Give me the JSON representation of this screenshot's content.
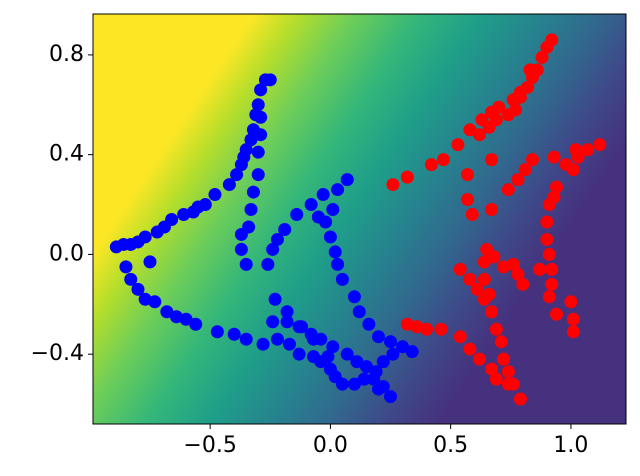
{
  "chart_data": {
    "type": "scatter",
    "xlim": [
      -0.987,
      1.229
    ],
    "ylim": [
      -0.68,
      0.964
    ],
    "xticks": [
      {
        "value": -0.5,
        "label": "−0.5"
      },
      {
        "value": 0,
        "label": "0.0"
      },
      0.5,
      {
        "value": 1,
        "label": "1.0"
      }
    ],
    "yticks": [
      {
        "value": -0.4,
        "label": "−0.4"
      },
      {
        "value": 0,
        "label": "0.0"
      },
      0.4,
      0.8
    ],
    "series": [
      {
        "color": "#0000ff",
        "x": [
          -0.89,
          -0.86,
          -0.83,
          -0.8,
          -0.77,
          -0.72,
          -0.69,
          -0.66,
          -0.61,
          -0.57,
          -0.55,
          -0.52,
          -0.48,
          -0.42,
          -0.39,
          -0.37,
          -0.36,
          -0.35,
          -0.33,
          -0.32,
          -0.31,
          -0.3,
          -0.29,
          -0.27,
          -0.25,
          -0.29,
          -0.29,
          -0.3,
          -0.3,
          -0.32,
          -0.33,
          -0.34,
          -0.37,
          -0.37,
          -0.35,
          -0.26,
          -0.24,
          -0.22,
          -0.19,
          -0.14,
          -0.08,
          -0.03,
          0.03,
          0.07,
          0.01,
          -0.02,
          0.0,
          0.02,
          0.03,
          0.05,
          0.1,
          0.12,
          0.16,
          0.2,
          0.25,
          0.3,
          0.34,
          0.26,
          0.22,
          0.19,
          0.14,
          0.1,
          0.05,
          0.02,
          0.0,
          -0.04,
          -0.07,
          -0.13,
          -0.17,
          -0.22,
          -0.24,
          -0.18,
          -0.13,
          -0.08,
          -0.04,
          0.01,
          0.07,
          0.11,
          0.15,
          0.18,
          0.22,
          0.25,
          0.2,
          -0.01,
          -0.07,
          -0.12,
          -0.18,
          -0.23,
          -0.28,
          -0.35,
          -0.4,
          -0.47,
          -0.56,
          -0.6,
          -0.64,
          -0.68,
          -0.73,
          -0.77,
          -0.8,
          -0.83,
          -0.85,
          -0.75,
          -0.05
        ],
        "values": [
          0.03,
          0.04,
          0.04,
          0.05,
          0.07,
          0.09,
          0.11,
          0.14,
          0.16,
          0.17,
          0.19,
          0.2,
          0.24,
          0.28,
          0.32,
          0.36,
          0.39,
          0.42,
          0.46,
          0.5,
          0.56,
          0.6,
          0.66,
          0.7,
          0.7,
          0.55,
          0.48,
          0.41,
          0.32,
          0.25,
          0.18,
          0.11,
          0.08,
          0.02,
          -0.04,
          -0.04,
          0.02,
          0.06,
          0.1,
          0.16,
          0.2,
          0.24,
          0.26,
          0.3,
          0.18,
          0.13,
          0.07,
          0.01,
          -0.04,
          -0.1,
          -0.17,
          -0.23,
          -0.28,
          -0.33,
          -0.35,
          -0.37,
          -0.39,
          -0.4,
          -0.43,
          -0.47,
          -0.5,
          -0.52,
          -0.52,
          -0.49,
          -0.46,
          -0.43,
          -0.41,
          -0.4,
          -0.36,
          -0.34,
          -0.27,
          -0.27,
          -0.29,
          -0.32,
          -0.34,
          -0.37,
          -0.4,
          -0.43,
          -0.45,
          -0.5,
          -0.53,
          -0.57,
          -0.54,
          -0.41,
          -0.34,
          -0.29,
          -0.23,
          -0.18,
          -0.36,
          -0.34,
          -0.32,
          -0.31,
          -0.28,
          -0.26,
          -0.25,
          -0.23,
          -0.19,
          -0.18,
          -0.14,
          -0.1,
          -0.05,
          -0.03,
          0.15
        ]
      },
      {
        "color": "#ff0000",
        "x": [
          0.26,
          0.32,
          0.42,
          0.47,
          0.53,
          0.58,
          0.63,
          0.67,
          0.7,
          0.76,
          0.79,
          0.84,
          0.86,
          0.88,
          0.9,
          0.92,
          0.83,
          0.82,
          0.79,
          0.77,
          0.74,
          0.69,
          0.66,
          0.62,
          0.67,
          0.57,
          0.57,
          0.59,
          0.67,
          0.74,
          0.78,
          0.81,
          0.84,
          0.93,
          0.98,
          0.94,
          0.93,
          0.91,
          0.9,
          0.9,
          0.91,
          0.92,
          0.92,
          0.91,
          0.94,
          1.0,
          1.01,
          1.01,
          1.02,
          1.07,
          1.12,
          1.03,
          1.01,
          0.65,
          0.68,
          0.72,
          0.76,
          0.78,
          0.8,
          0.87,
          0.64,
          0.64,
          0.66,
          0.67,
          0.69,
          0.71,
          0.72,
          0.74,
          0.76,
          0.79,
          0.74,
          0.69,
          0.67,
          0.62,
          0.58,
          0.54,
          0.46,
          0.4,
          0.36,
          0.32,
          0.54,
          0.58,
          0.61,
          0.64
        ],
        "values": [
          0.28,
          0.31,
          0.36,
          0.38,
          0.44,
          0.5,
          0.54,
          0.57,
          0.59,
          0.62,
          0.65,
          0.71,
          0.74,
          0.79,
          0.83,
          0.86,
          0.74,
          0.67,
          0.63,
          0.58,
          0.56,
          0.54,
          0.51,
          0.48,
          0.38,
          0.32,
          0.22,
          0.16,
          0.18,
          0.26,
          0.3,
          0.34,
          0.38,
          0.39,
          0.36,
          0.27,
          0.23,
          0.2,
          0.13,
          0.06,
          0.0,
          -0.06,
          -0.12,
          -0.17,
          -0.24,
          -0.19,
          -0.26,
          -0.31,
          0.42,
          0.42,
          0.44,
          0.39,
          0.34,
          0.02,
          -0.01,
          -0.05,
          -0.04,
          -0.08,
          -0.12,
          -0.06,
          -0.03,
          -0.1,
          -0.16,
          -0.23,
          -0.3,
          -0.35,
          -0.42,
          -0.47,
          -0.52,
          -0.58,
          -0.52,
          -0.5,
          -0.46,
          -0.42,
          -0.38,
          -0.33,
          -0.3,
          -0.3,
          -0.29,
          -0.28,
          -0.06,
          -0.1,
          -0.14,
          -0.18
        ]
      }
    ]
  }
}
